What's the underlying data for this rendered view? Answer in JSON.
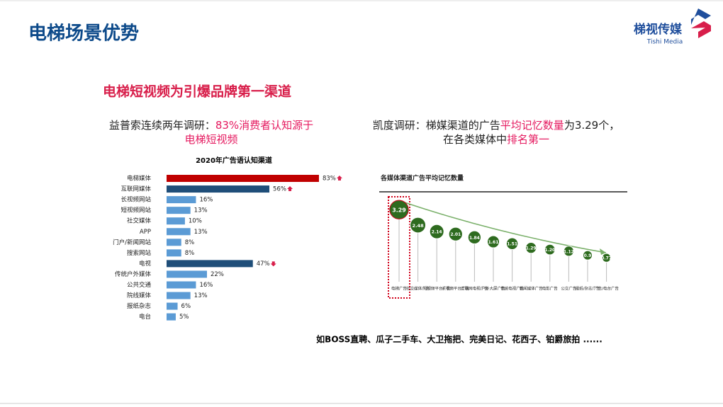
{
  "header": {
    "title": "电梯场景优势",
    "logo": {
      "name": "梯视传媒",
      "english": "Tishi Media"
    }
  },
  "subtitle": "电梯短视频为引爆品牌第一渠道",
  "left_caption": {
    "lines": [
      [
        {
          "text": "益普索连续两年调研：",
          "highlight": false
        },
        {
          "text": "83%消费者认知源于",
          "highlight": true
        }
      ],
      [
        {
          "text": "电梯短视频",
          "highlight": true
        }
      ]
    ]
  },
  "right_caption": {
    "lines": [
      [
        {
          "text": "凯度调研：梯媒渠道的广告",
          "highlight": false
        },
        {
          "text": "平均记忆数量",
          "highlight": true
        },
        {
          "text": "为3.29个，",
          "highlight": false
        }
      ],
      [
        {
          "text": "在各类媒体中",
          "highlight": false
        },
        {
          "text": "排名第一",
          "highlight": true
        }
      ]
    ]
  },
  "footer": "如BOSS直聘、瓜子二手车、大卫拖把、完美日记、花西子、铂爵旅拍 ......",
  "chart_data": [
    {
      "type": "hbar",
      "title": "2020年广告语认知渠道",
      "categories": [
        "电梯媒体",
        "互联网媒体",
        "长视频网站",
        "短视频网站",
        "社交媒体",
        "APP",
        "门户/新闻网站",
        "搜索网站",
        "电视",
        "传统户外媒体",
        "公共交通",
        "院线媒体",
        "报纸杂志",
        "电台"
      ],
      "values": [
        83,
        56,
        16,
        13,
        10,
        13,
        8,
        8,
        47,
        22,
        16,
        13,
        6,
        5
      ],
      "value_labels": [
        "83%",
        "56%",
        "16%",
        "13%",
        "10%",
        "13%",
        "8%",
        "8%",
        "47%",
        "22%",
        "16%",
        "13%",
        "6%",
        "5%"
      ],
      "colors": [
        "#c00000",
        "#1f4e79",
        "#5b9bd5",
        "#5b9bd5",
        "#5b9bd5",
        "#5b9bd5",
        "#5b9bd5",
        "#5b9bd5",
        "#1f4e79",
        "#5b9bd5",
        "#5b9bd5",
        "#5b9bd5",
        "#5b9bd5",
        "#5b9bd5"
      ],
      "trend": [
        "up",
        "up",
        null,
        null,
        null,
        null,
        null,
        null,
        "down",
        null,
        null,
        null,
        null,
        null
      ],
      "xlim": [
        0,
        100
      ]
    },
    {
      "type": "bubble",
      "title": "各媒体渠道广告平均记忆数量",
      "categories": [
        "电梯广告",
        "社交媒体广告",
        "短视频平台广告",
        "长视频平台广告",
        "互联网电视广告",
        "户外大屏广告",
        "传统电视广告",
        "新闻媒体广告",
        "电影广告",
        "公交广告",
        "报纸/杂志广告",
        "广告/电台广告"
      ],
      "values": [
        3.29,
        2.48,
        2.14,
        2.01,
        1.84,
        1.61,
        1.51,
        1.29,
        1.2,
        1.12,
        0.9,
        0.77
      ],
      "value_labels": [
        "3.29",
        "2.48",
        "2.14",
        "2.01",
        "1.84",
        "1.61",
        "1.51",
        "1.29",
        "1.20",
        "1.12",
        "0.9",
        "0.77"
      ],
      "color": "#2e6b1f",
      "highlight_color": "#d0021b"
    }
  ]
}
